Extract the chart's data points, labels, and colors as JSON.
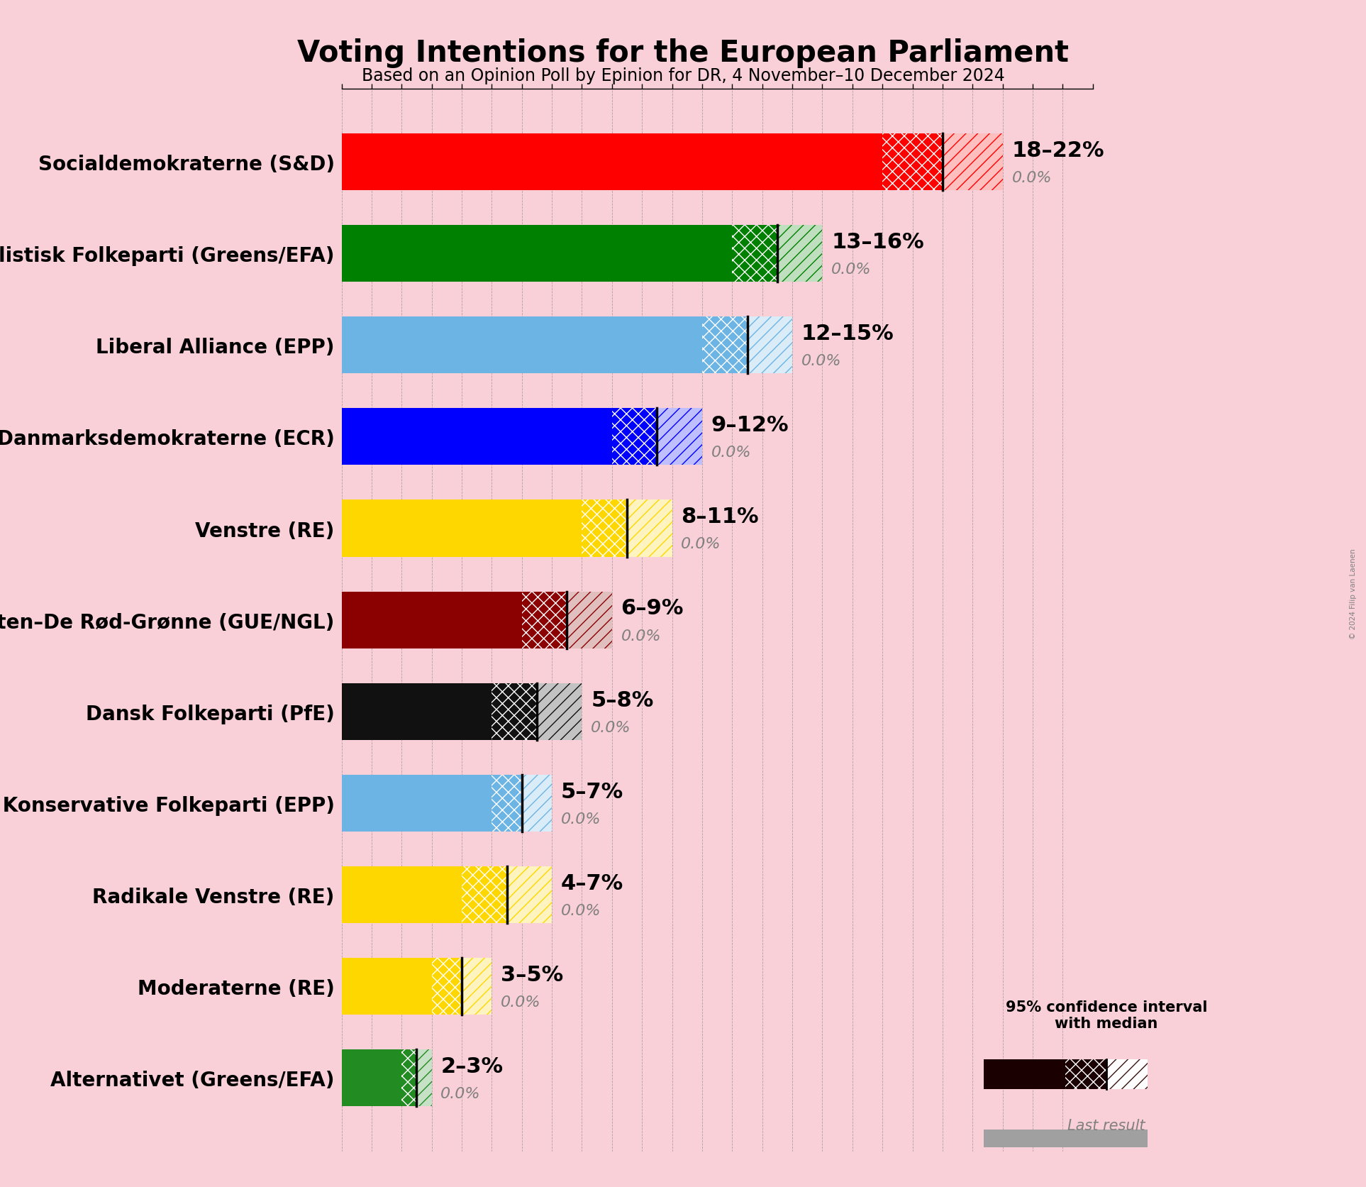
{
  "title": "Voting Intentions for the European Parliament",
  "subtitle": "Based on an Opinion Poll by Epinion for DR, 4 November–10 December 2024",
  "copyright": "© 2024 Filip van Laenen",
  "background_color": "#f9d0d8",
  "parties": [
    {
      "name": "Socialdemokraterne (S&D)",
      "low": 18,
      "high": 22,
      "median": 20,
      "last": 0.0,
      "color": "#FF0000",
      "label": "18–22%"
    },
    {
      "name": "Socialistisk Folkeparti (Greens/EFA)",
      "low": 13,
      "high": 16,
      "median": 14.5,
      "last": 0.0,
      "color": "#008000",
      "label": "13–16%"
    },
    {
      "name": "Liberal Alliance (EPP)",
      "low": 12,
      "high": 15,
      "median": 13.5,
      "last": 0.0,
      "color": "#6CB4E4",
      "label": "12–15%"
    },
    {
      "name": "Danmarksdemokraterne (ECR)",
      "low": 9,
      "high": 12,
      "median": 10.5,
      "last": 0.0,
      "color": "#0000FF",
      "label": "9–12%"
    },
    {
      "name": "Venstre (RE)",
      "low": 8,
      "high": 11,
      "median": 9.5,
      "last": 0.0,
      "color": "#FFD700",
      "label": "8–11%"
    },
    {
      "name": "Enhedslisten–De Rød-Grønne (GUE/NGL)",
      "low": 6,
      "high": 9,
      "median": 7.5,
      "last": 0.0,
      "color": "#8B0000",
      "label": "6–9%"
    },
    {
      "name": "Dansk Folkeparti (PfE)",
      "low": 5,
      "high": 8,
      "median": 6.5,
      "last": 0.0,
      "color": "#111111",
      "label": "5–8%"
    },
    {
      "name": "Det Konservative Folkeparti (EPP)",
      "low": 5,
      "high": 7,
      "median": 6.0,
      "last": 0.0,
      "color": "#6CB4E4",
      "label": "5–7%"
    },
    {
      "name": "Radikale Venstre (RE)",
      "low": 4,
      "high": 7,
      "median": 5.5,
      "last": 0.0,
      "color": "#FFD700",
      "label": "4–7%"
    },
    {
      "name": "Moderaterne (RE)",
      "low": 3,
      "high": 5,
      "median": 4.0,
      "last": 0.0,
      "color": "#FFD700",
      "label": "3–5%"
    },
    {
      "name": "Alternativet (Greens/EFA)",
      "low": 2,
      "high": 3,
      "median": 2.5,
      "last": 0.0,
      "color": "#228B22",
      "label": "2–3%"
    }
  ],
  "xlim": [
    0,
    25
  ],
  "bar_height": 0.62,
  "label_fontsize": 20,
  "title_fontsize": 30,
  "subtitle_fontsize": 17,
  "range_fontsize": 22,
  "last_fontsize": 16,
  "legend_fontsize": 15
}
